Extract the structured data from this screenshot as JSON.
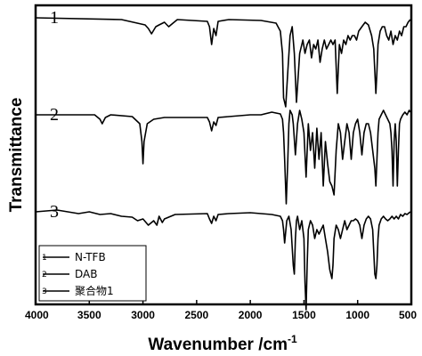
{
  "chart_data": {
    "type": "line",
    "xlabel_main": "Wavenumber /cm",
    "xlabel_sup": "-1",
    "ylabel": "Transmittance",
    "xlim": [
      4000,
      500
    ],
    "xreversed": true,
    "x_ticks": [
      4000,
      3500,
      3000,
      2500,
      2000,
      1500,
      1000,
      500
    ],
    "y_ticks_shown": false,
    "grid": false,
    "legend_position": "bottom-left",
    "series": [
      {
        "name": "N-TFB",
        "curve_label": "1",
        "baseline": 0.0,
        "x": [
          4000,
          3200,
          2980,
          2950,
          2920,
          2880,
          2850,
          2800,
          2760,
          2720,
          2680,
          2400,
          2380,
          2360,
          2340,
          2320,
          2300,
          2200,
          1900,
          1760,
          1720,
          1700,
          1690,
          1670,
          1650,
          1630,
          1610,
          1590,
          1570,
          1540,
          1510,
          1490,
          1470,
          1450,
          1430,
          1410,
          1390,
          1370,
          1350,
          1330,
          1310,
          1290,
          1270,
          1250,
          1230,
          1210,
          1190,
          1170,
          1150,
          1130,
          1110,
          1090,
          1070,
          1050,
          1030,
          1010,
          990,
          960,
          930,
          900,
          870,
          850,
          840,
          830,
          820,
          810,
          790,
          770,
          750,
          730,
          710,
          690,
          670,
          650,
          630,
          610,
          590,
          570,
          550,
          530,
          510
        ],
        "y": [
          0,
          0.2,
          0.8,
          1.2,
          1.8,
          1.0,
          0.8,
          0.5,
          1.0,
          0.6,
          0.2,
          0.4,
          1.0,
          3.0,
          1.2,
          2.0,
          0.4,
          0.2,
          0.3,
          0.6,
          1.5,
          4.0,
          9.0,
          10.0,
          6.0,
          2.0,
          1.0,
          4.0,
          9.5,
          4.0,
          2.5,
          4.0,
          3.0,
          2.5,
          4.5,
          3.0,
          3.5,
          2.5,
          5.0,
          3.5,
          2.5,
          3.5,
          3.0,
          2.5,
          3.0,
          2.5,
          8.5,
          3.0,
          4.0,
          2.5,
          3.0,
          2.0,
          2.5,
          2.0,
          2.0,
          2.5,
          1.5,
          1.0,
          0.5,
          0.8,
          2.0,
          3.5,
          6.0,
          8.5,
          6.0,
          3.0,
          1.5,
          1.0,
          1.0,
          2.0,
          2.5,
          1.5,
          3.0,
          2.0,
          2.5,
          1.5,
          2.0,
          1.0,
          1.0,
          0.5,
          0.2
        ]
      },
      {
        "name": "DAB",
        "curve_label": "2",
        "baseline": 0.0,
        "x": [
          4000,
          3450,
          3400,
          3380,
          3350,
          3300,
          3100,
          3030,
          3010,
          3000,
          2990,
          2960,
          2900,
          2800,
          2400,
          2380,
          2360,
          2340,
          2320,
          2300,
          2200,
          2000,
          1900,
          1800,
          1720,
          1700,
          1690,
          1680,
          1665,
          1650,
          1640,
          1630,
          1610,
          1600,
          1580,
          1560,
          1540,
          1520,
          1500,
          1480,
          1460,
          1440,
          1420,
          1400,
          1380,
          1360,
          1340,
          1320,
          1300,
          1280,
          1260,
          1240,
          1220,
          1200,
          1180,
          1160,
          1140,
          1120,
          1100,
          1080,
          1060,
          1040,
          1020,
          1000,
          980,
          960,
          940,
          920,
          900,
          880,
          860,
          840,
          830,
          820,
          810,
          800,
          780,
          760,
          740,
          720,
          700,
          690,
          680,
          670,
          660,
          650,
          640,
          630,
          620,
          610,
          600,
          580,
          560,
          540,
          520,
          510
        ],
        "y": [
          0,
          0,
          0.5,
          1.0,
          0.3,
          0,
          0.2,
          1.0,
          3.0,
          5.5,
          3.0,
          1.0,
          0.5,
          0.3,
          0.3,
          0.8,
          1.8,
          0.8,
          1.2,
          0.3,
          0.2,
          0,
          0,
          -0.3,
          -0.1,
          0.5,
          2.0,
          5.0,
          10.0,
          5.0,
          1.0,
          -0.5,
          0,
          1.0,
          4.5,
          1.0,
          -0.5,
          0.5,
          2.0,
          7.0,
          1.0,
          4.0,
          2.0,
          6.0,
          1.5,
          5.0,
          2.0,
          8.0,
          3.0,
          5.5,
          7.5,
          8.0,
          9.0,
          4.0,
          1.0,
          2.0,
          5.0,
          3.0,
          1.0,
          2.0,
          5.0,
          2.0,
          1.0,
          0.5,
          2.0,
          4.5,
          2.0,
          1.0,
          1.0,
          2.0,
          4.0,
          6.0,
          8.0,
          5.0,
          2.0,
          0.5,
          0,
          -0.5,
          0,
          0.5,
          1.0,
          2.0,
          4.0,
          8.0,
          3.0,
          1.0,
          3.0,
          8.0,
          4.0,
          1.0,
          0.5,
          0,
          -0.3,
          0,
          -0.5,
          -0.3
        ]
      },
      {
        "name": "聚合物1",
        "curve_label": "3",
        "baseline": 0.0,
        "x": [
          4000,
          3800,
          3600,
          3500,
          3400,
          3300,
          3200,
          3100,
          3050,
          3000,
          2950,
          2900,
          2870,
          2850,
          2820,
          2800,
          2700,
          2400,
          2380,
          2360,
          2340,
          2320,
          2300,
          2200,
          2000,
          1900,
          1800,
          1720,
          1700,
          1690,
          1680,
          1660,
          1640,
          1620,
          1600,
          1590,
          1580,
          1570,
          1560,
          1540,
          1520,
          1500,
          1490,
          1480,
          1470,
          1460,
          1440,
          1420,
          1400,
          1380,
          1360,
          1340,
          1320,
          1300,
          1280,
          1260,
          1240,
          1230,
          1220,
          1200,
          1180,
          1160,
          1140,
          1120,
          1100,
          1080,
          1060,
          1040,
          1020,
          1000,
          980,
          960,
          940,
          920,
          900,
          880,
          860,
          850,
          840,
          830,
          820,
          810,
          800,
          780,
          760,
          740,
          720,
          700,
          680,
          660,
          640,
          620,
          600,
          580,
          560,
          540,
          520,
          510
        ],
        "y": [
          0,
          -0.2,
          0.2,
          0,
          0.3,
          0.2,
          0.5,
          0.6,
          1.0,
          0.8,
          1.5,
          1.0,
          1.5,
          0.5,
          1.2,
          0.8,
          0.3,
          0.2,
          0.8,
          1.3,
          0.5,
          1.0,
          0.3,
          0.2,
          0.1,
          0.2,
          0.3,
          0.5,
          1.0,
          2.0,
          3.5,
          1.0,
          0.5,
          2.0,
          6.0,
          7.0,
          3.0,
          1.0,
          0.5,
          2.0,
          1.0,
          3.0,
          8.0,
          11.0,
          6.0,
          2.0,
          1.0,
          1.5,
          3.0,
          2.0,
          2.5,
          2.0,
          1.5,
          3.0,
          4.5,
          6.5,
          7.5,
          6.0,
          3.0,
          1.5,
          2.0,
          3.0,
          2.0,
          1.0,
          2.0,
          1.5,
          1.0,
          1.0,
          0.8,
          1.0,
          1.5,
          3.0,
          1.5,
          0.8,
          0.5,
          0.8,
          2.0,
          4.5,
          7.0,
          7.5,
          6.0,
          3.0,
          1.5,
          0.8,
          0.5,
          0.8,
          1.0,
          0.8,
          0.5,
          0.8,
          0.5,
          0.8,
          0.3,
          0.5,
          0.2,
          0.3,
          0.1,
          0
        ]
      }
    ]
  }
}
